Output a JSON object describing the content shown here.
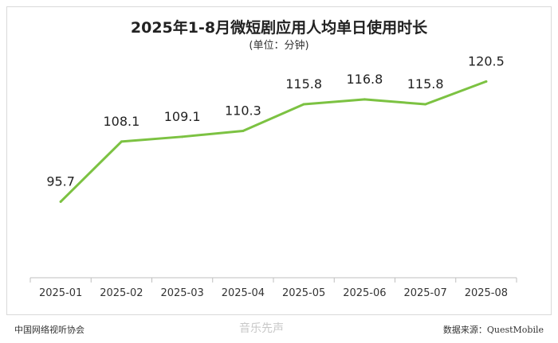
{
  "chart_data": {
    "type": "line",
    "title": "2025年1-8月微短剧应用人均单日使用时长",
    "subtitle": "(单位：分钟)",
    "categories": [
      "2025-01",
      "2025-02",
      "2025-03",
      "2025-04",
      "2025-05",
      "2025-06",
      "2025-07",
      "2025-08"
    ],
    "values": [
      95.7,
      108.1,
      109.1,
      110.3,
      115.8,
      116.8,
      115.8,
      120.5
    ],
    "value_labels": [
      "95.7",
      "108.1",
      "109.1",
      "110.3",
      "115.8",
      "116.8",
      "115.8",
      "120.5"
    ],
    "ylim": [
      80,
      125
    ],
    "grid": false,
    "line_color": "#7cc242"
  },
  "footer": {
    "source_left": "中国网络视听协会",
    "source_right": "数据来源：QuestMobile",
    "watermark": "音乐先声"
  }
}
